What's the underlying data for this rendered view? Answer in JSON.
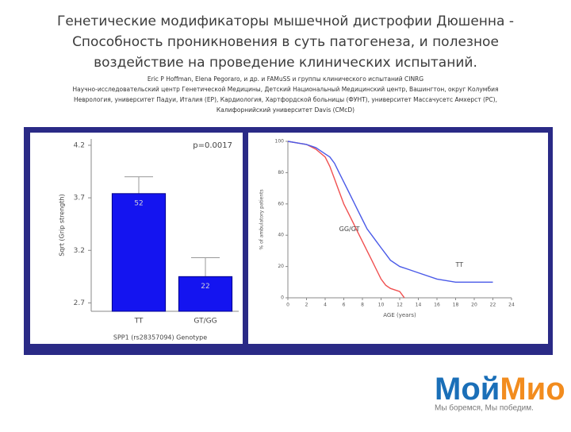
{
  "slide": {
    "title": [
      "Генетические модификаторы мышечной дистрофии Дюшенна -",
      "Способность проникновения в суть патогенеза, и  полезное",
      "воздействие на проведение клинических испытаний."
    ],
    "authors": "Eric P Hoffman, Elena Pegoraro, и др. и FAMuSS и группы клинического испытаний CINRG",
    "affiliations": [
      "Научно-исследовательский центр  Генетической Медицины, Детский Национальный Медицинский центр, Вашингтон, округ Колумбия",
      "Неврология, университет Падуи, Италия (EP), Кардиология, Хартфордской больницы (ФУНТ), университет Массачусетс Амхерст (PC),",
      "Калифорнийский университет Davis (CMcD)"
    ],
    "logo": {
      "part1": "Мой",
      "part2": "Мио",
      "slogan": "Мы боремся, Мы победим."
    }
  },
  "chart_data": [
    {
      "type": "bar",
      "annotation": "p=0.0017",
      "categories": [
        "TT",
        "GT/GG"
      ],
      "values": [
        3.74,
        2.95
      ],
      "errors": [
        0.16,
        0.18
      ],
      "bar_labels": [
        "52",
        "22"
      ],
      "color": "#1414f0",
      "xlabel": "SPP1 (rs28357094) Genotype",
      "ylabel": "Sqrt (Grip strength)",
      "ylim": [
        2.62,
        4.26
      ],
      "yticks": [
        2.7,
        3.2,
        3.7,
        4.2
      ]
    },
    {
      "type": "line",
      "xlabel": "AGE (years)",
      "ylabel": "% of ambulatory patients",
      "xlim": [
        0,
        24
      ],
      "ylim": [
        0,
        100
      ],
      "xticks": [
        0,
        2,
        4,
        6,
        8,
        10,
        12,
        14,
        16,
        18,
        20,
        22,
        24
      ],
      "yticks": [
        0,
        20,
        40,
        60,
        80,
        100
      ],
      "series": [
        {
          "name": "GG/GT",
          "color": "#f05050",
          "x": [
            0,
            2,
            3,
            4,
            4.5,
            5,
            5.5,
            6,
            6.5,
            7,
            7.5,
            8,
            8.5,
            9,
            9.5,
            10,
            10.5,
            11,
            12,
            12.5
          ],
          "values": [
            100,
            98,
            95,
            90,
            84,
            76,
            68,
            60,
            54,
            48,
            42,
            36,
            30,
            24,
            18,
            12,
            8,
            6,
            4,
            0
          ]
        },
        {
          "name": "TT",
          "color": "#4a5ae8",
          "x": [
            0,
            2,
            3,
            3.5,
            4,
            4.5,
            5,
            5.5,
            6,
            6.5,
            7,
            7.5,
            8,
            8.5,
            9,
            9.5,
            10,
            10.5,
            11,
            12,
            13,
            14,
            16,
            18,
            22
          ],
          "values": [
            100,
            98,
            96,
            94,
            92,
            90,
            86,
            80,
            74,
            68,
            62,
            56,
            50,
            44,
            40,
            36,
            32,
            28,
            24,
            20,
            18,
            16,
            12,
            10,
            10
          ]
        }
      ]
    }
  ]
}
